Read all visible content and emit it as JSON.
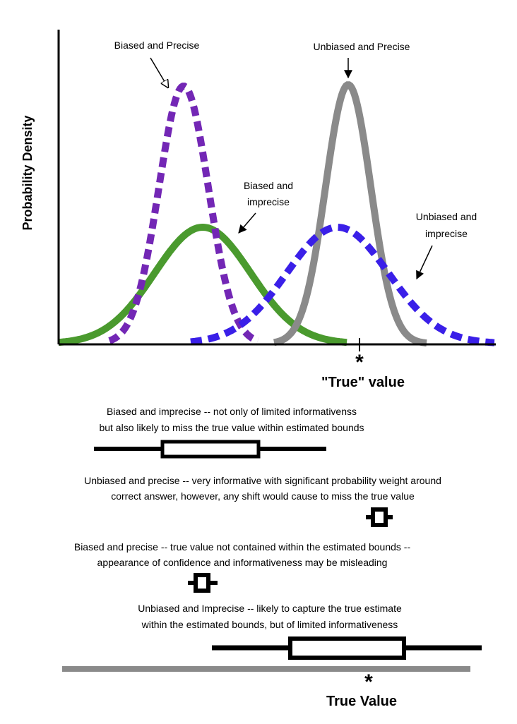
{
  "plot": {
    "y_axis_label": "Probability Density",
    "annotations": [
      {
        "lines": [
          "Biased and Precise"
        ]
      },
      {
        "lines": [
          "Unbiased and Precise"
        ]
      },
      {
        "lines": [
          "Biased and",
          "imprecise"
        ]
      },
      {
        "lines": [
          "Unbiased and",
          "imprecise"
        ]
      }
    ],
    "true_marker": "*",
    "true_label": "\"True\" value"
  },
  "boxplots": [
    {
      "description": [
        "Biased and imprecise -- not only of limited informativenss",
        "but also likely to miss the true value within estimated bounds"
      ]
    },
    {
      "description": [
        "Unbiased and precise -- very informative with significant probability weight around",
        "correct answer, however, any shift would cause to miss the true value"
      ]
    },
    {
      "description": [
        "Biased and precise -- true value not contained within the estimated bounds --",
        "appearance of confidence and informativeness may be misleading"
      ]
    },
    {
      "description": [
        "Unbiased and Imprecise -- likely to capture the true estimate",
        "within the estimated bounds, but of limited informativeness"
      ]
    }
  ],
  "footer": {
    "marker": "*",
    "label": "True Value"
  }
}
